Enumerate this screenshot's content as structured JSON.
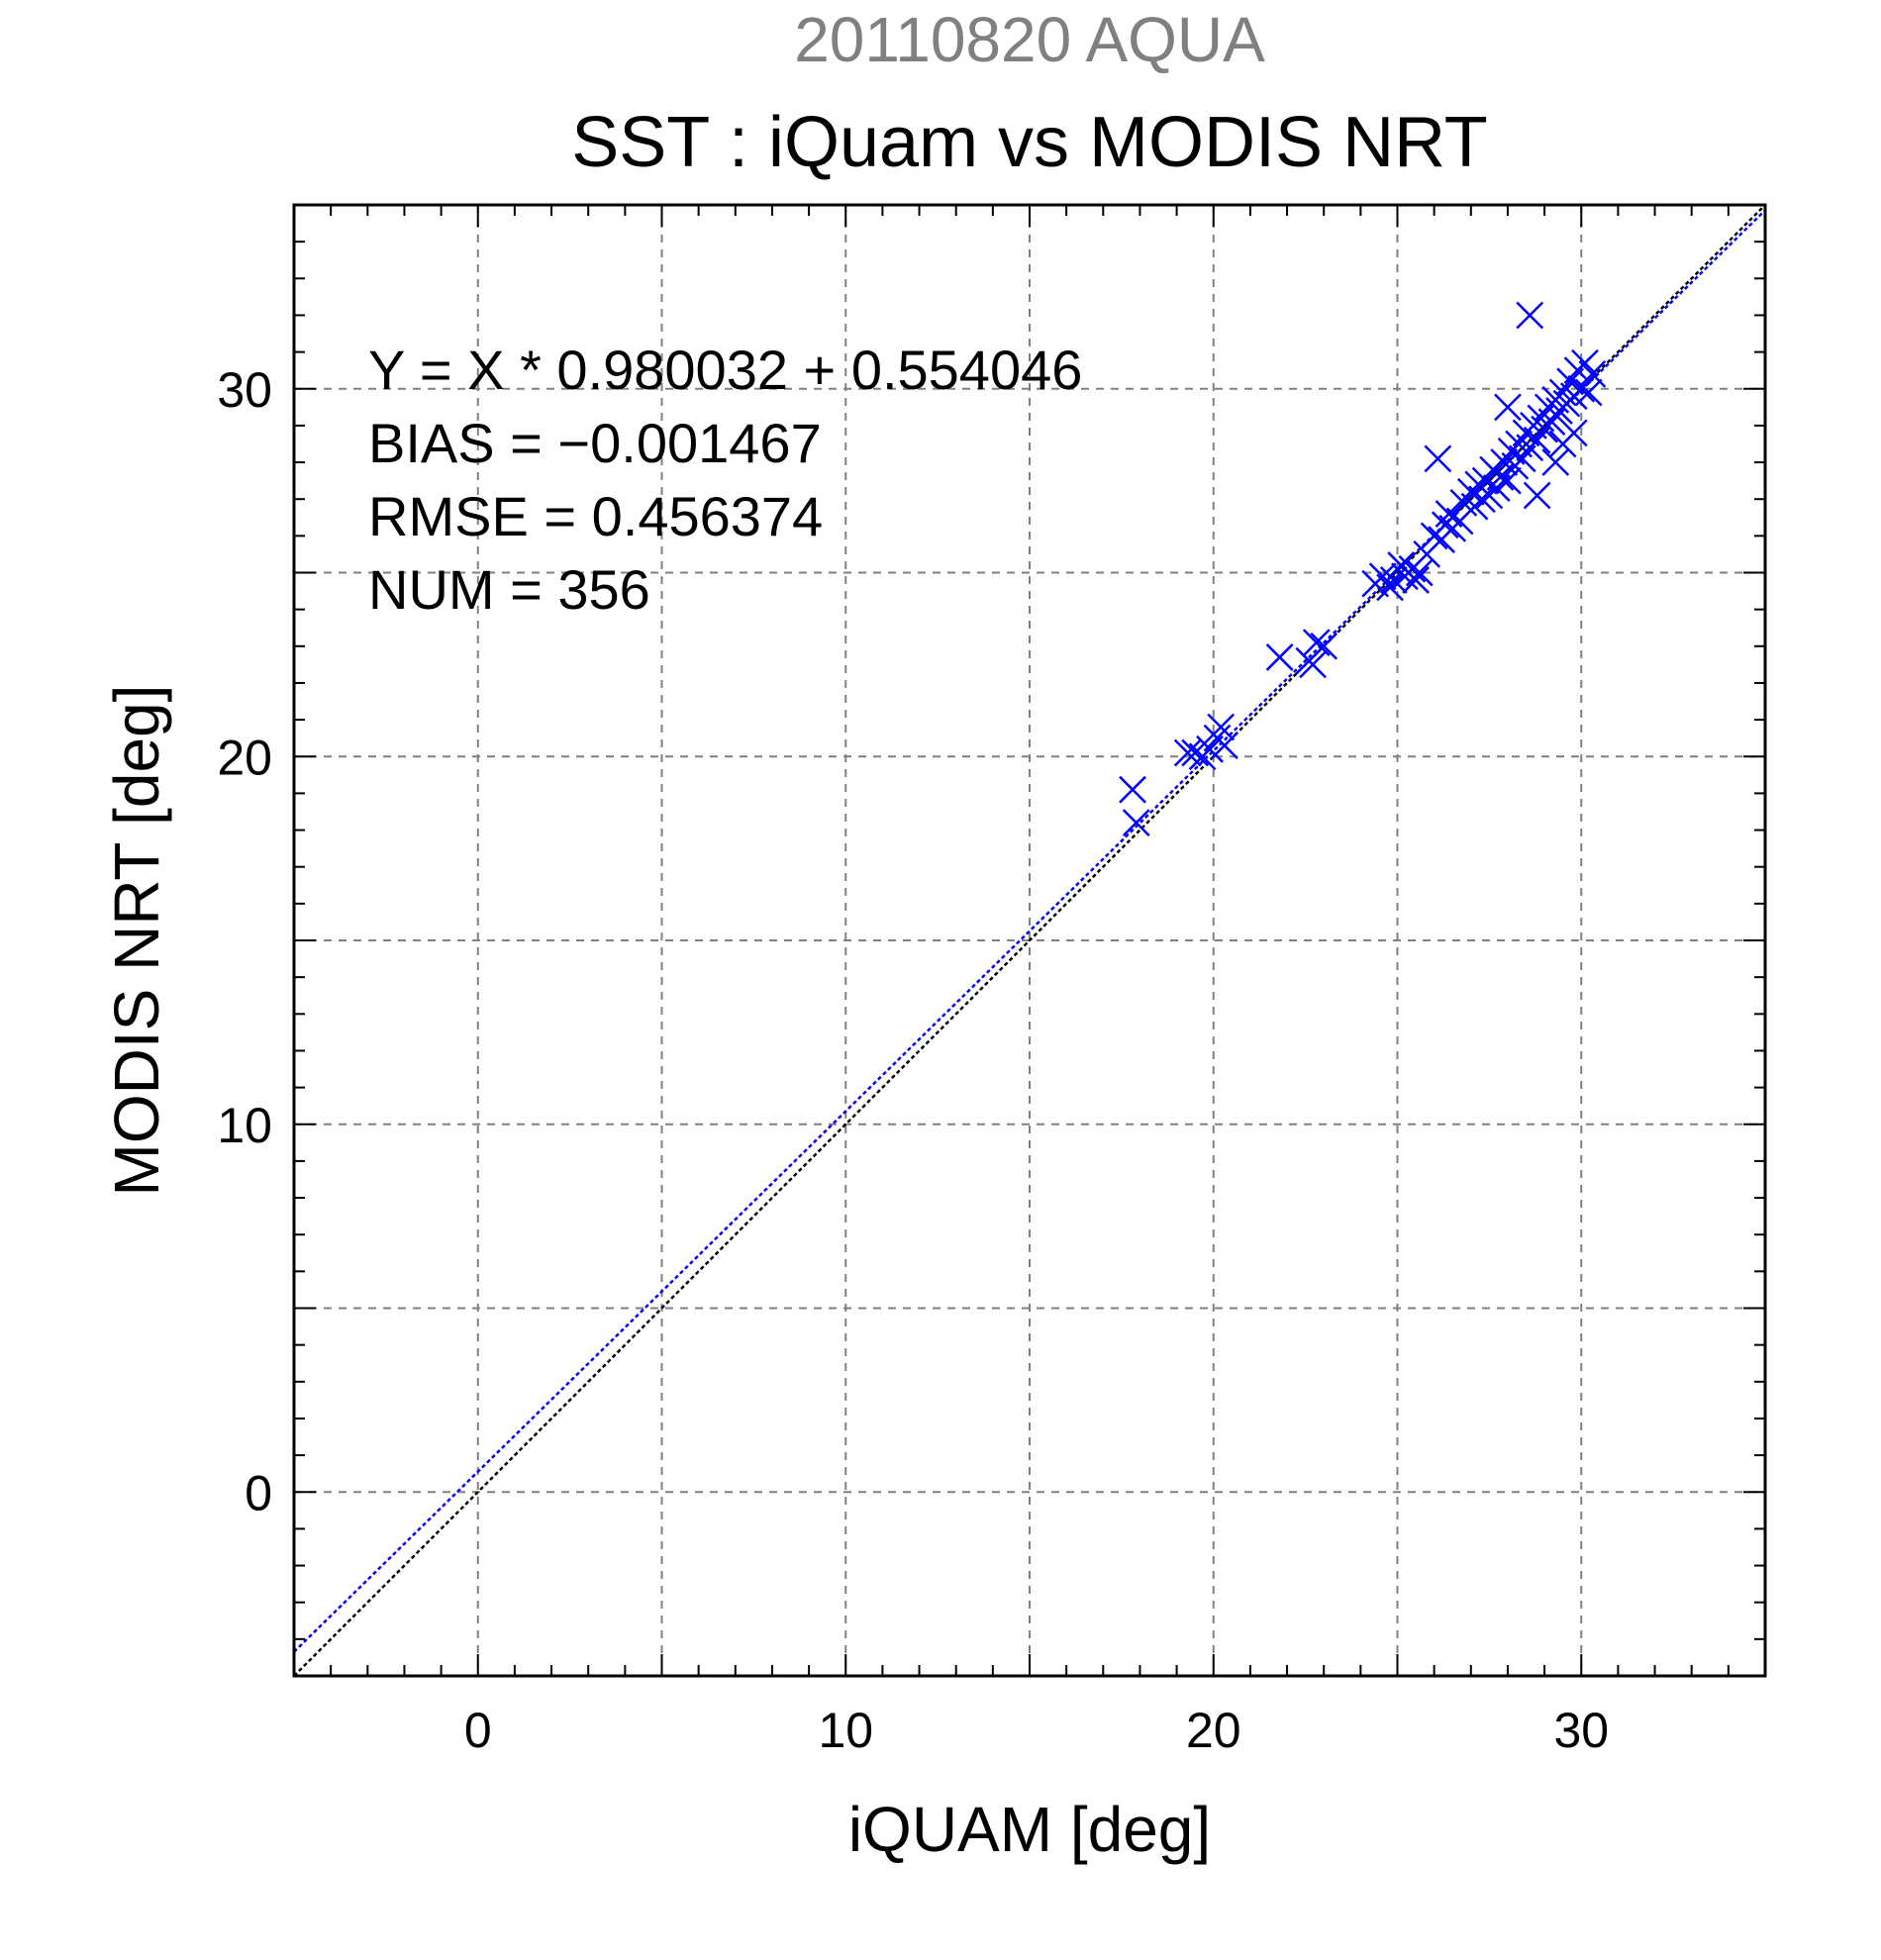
{
  "chart_data": {
    "type": "scatter",
    "title": "SST : iQuam vs MODIS NRT",
    "subtitle": "20110820 AQUA",
    "xlabel": "iQUAM [deg]",
    "ylabel": "MODIS NRT [deg]",
    "xlim": [
      -5,
      35
    ],
    "ylim": [
      -5,
      35
    ],
    "xticks": [
      0,
      10,
      20,
      30
    ],
    "yticks": [
      0,
      10,
      20,
      30
    ],
    "grid": true,
    "colors": {
      "points": "#0000ff",
      "fit_line": "#0000ff",
      "identity_line": "#000000",
      "subtitle": "#808080",
      "grid": "#808080"
    },
    "annotations": {
      "fit": "Y = X * 0.980032 + 0.554046",
      "bias": "BIAS = −0.001467",
      "rmse": "RMSE = 0.456374",
      "num": "NUM = 356"
    },
    "fit_line": {
      "slope": 0.980032,
      "intercept": 0.554046
    },
    "identity_line": {
      "slope": 1,
      "intercept": 0
    },
    "series": [
      {
        "marker": "x",
        "points": [
          [
            17.8,
            19.1
          ],
          [
            17.9,
            18.2
          ],
          [
            19.3,
            20.1
          ],
          [
            19.5,
            20.1
          ],
          [
            19.7,
            20.0
          ],
          [
            19.9,
            20.2
          ],
          [
            20.1,
            20.5
          ],
          [
            20.2,
            20.8
          ],
          [
            20.3,
            20.3
          ],
          [
            21.8,
            22.7
          ],
          [
            22.6,
            22.6
          ],
          [
            22.7,
            22.5
          ],
          [
            22.8,
            23.1
          ],
          [
            23.0,
            23.0
          ],
          [
            24.4,
            24.7
          ],
          [
            24.6,
            24.9
          ],
          [
            24.8,
            24.6
          ],
          [
            24.9,
            24.8
          ],
          [
            25.1,
            25.2
          ],
          [
            25.2,
            24.9
          ],
          [
            25.4,
            25.1
          ],
          [
            25.5,
            24.8
          ],
          [
            25.6,
            25.0
          ],
          [
            25.8,
            25.5
          ],
          [
            26.0,
            26.0
          ],
          [
            26.1,
            28.1
          ],
          [
            26.2,
            25.9
          ],
          [
            26.3,
            26.3
          ],
          [
            26.4,
            26.6
          ],
          [
            26.5,
            26.2
          ],
          [
            26.7,
            26.4
          ],
          [
            26.8,
            26.9
          ],
          [
            27.0,
            27.2
          ],
          [
            27.1,
            26.8
          ],
          [
            27.2,
            27.4
          ],
          [
            27.3,
            27.0
          ],
          [
            27.4,
            27.5
          ],
          [
            27.5,
            27.1
          ],
          [
            27.6,
            27.8
          ],
          [
            27.7,
            27.3
          ],
          [
            27.8,
            27.6
          ],
          [
            27.9,
            28.0
          ],
          [
            28.0,
            29.5
          ],
          [
            28.0,
            27.5
          ],
          [
            28.1,
            28.3
          ],
          [
            28.2,
            27.9
          ],
          [
            28.3,
            28.5
          ],
          [
            28.4,
            28.1
          ],
          [
            28.5,
            28.8
          ],
          [
            28.6,
            28.4
          ],
          [
            28.6,
            32.0
          ],
          [
            28.7,
            29.0
          ],
          [
            28.8,
            27.1
          ],
          [
            28.8,
            28.6
          ],
          [
            28.9,
            29.2
          ],
          [
            29.0,
            28.9
          ],
          [
            29.1,
            29.5
          ],
          [
            29.2,
            29.1
          ],
          [
            29.3,
            28.0
          ],
          [
            29.3,
            29.7
          ],
          [
            29.4,
            29.4
          ],
          [
            29.5,
            29.9
          ],
          [
            29.5,
            28.5
          ],
          [
            29.6,
            29.6
          ],
          [
            29.7,
            30.2
          ],
          [
            29.8,
            29.8
          ],
          [
            29.8,
            28.8
          ],
          [
            29.9,
            30.5
          ],
          [
            30.0,
            30.0
          ],
          [
            30.1,
            30.7
          ],
          [
            30.2,
            29.9
          ],
          [
            30.3,
            30.4
          ]
        ]
      }
    ]
  }
}
